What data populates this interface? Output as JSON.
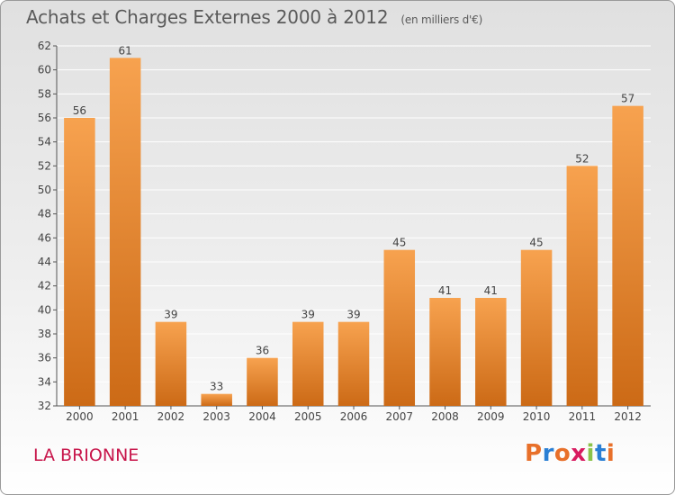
{
  "header": {
    "title": "Achats et Charges Externes 2000 à 2012",
    "unit": "(en milliers d'€)"
  },
  "footer": {
    "commune": "LA BRIONNE",
    "logo": "Proxiti",
    "logo_colors": [
      "#e8702a",
      "#2a7fd4",
      "#e8702a",
      "#d81b60",
      "#8bc34a",
      "#2a7fd4",
      "#e8702a"
    ]
  },
  "colors": {
    "bar_light": "#f7a24f",
    "bar_dark": "#cc6a16",
    "grid": "#ffffff",
    "text": "#444444"
  },
  "chart_data": {
    "type": "bar",
    "title": "Achats et Charges Externes 2000 à 2012",
    "categories": [
      "2000",
      "2001",
      "2002",
      "2003",
      "2004",
      "2005",
      "2006",
      "2007",
      "2008",
      "2009",
      "2010",
      "2011",
      "2012"
    ],
    "values": [
      56,
      61,
      39,
      33,
      36,
      39,
      39,
      45,
      41,
      41,
      45,
      52,
      57
    ],
    "ylim": [
      32,
      62
    ],
    "yticks": [
      32,
      34,
      36,
      38,
      40,
      42,
      44,
      46,
      48,
      50,
      52,
      54,
      56,
      58,
      60,
      62
    ],
    "grid": true
  }
}
